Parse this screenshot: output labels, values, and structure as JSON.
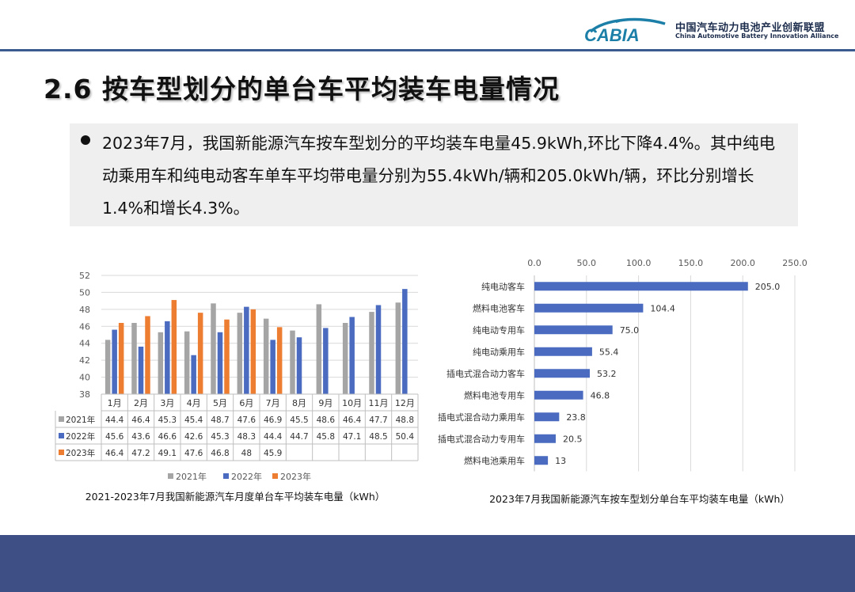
{
  "header": {
    "logo_text": "CABIA",
    "org_cn": "中国汽车动力电池产业创新联盟",
    "org_en": "China Automotive Battery Innovation Alliance",
    "accent_color": "#3b5a8f"
  },
  "slide_title": "2.6 按车型划分的单台车平均装车电量情况",
  "summary": "2023年7月，我国新能源汽车按车型划分的平均装车电量45.9kWh,环比下降4.4%。其中纯电动乘用车和纯电动客车单车平均带电量分别为55.4kWh/辆和205.0kWh/辆，环比分别增长1.4%和增长4.3%。",
  "chart_data": [
    {
      "type": "bar",
      "caption": "2021-2023年7月我国新能源汽车月度单台车平均装车电量（kWh）",
      "categories": [
        "1月",
        "2月",
        "3月",
        "4月",
        "5月",
        "6月",
        "7月",
        "8月",
        "9月",
        "10月",
        "11月",
        "12月"
      ],
      "ylim": [
        38,
        52
      ],
      "yticks": [
        38,
        40,
        42,
        44,
        46,
        48,
        50,
        52
      ],
      "grid": true,
      "legend_position": "bottom",
      "data_table": true,
      "series": [
        {
          "name": "2021年",
          "color": "#a5a5a5",
          "values": [
            44.4,
            46.4,
            45.3,
            45.4,
            48.7,
            47.6,
            46.9,
            45.5,
            48.6,
            46.4,
            47.7,
            48.8
          ]
        },
        {
          "name": "2022年",
          "color": "#4a6bbf",
          "values": [
            45.6,
            43.6,
            46.6,
            42.6,
            45.3,
            48.3,
            44.4,
            44.7,
            45.8,
            47.1,
            48.5,
            50.4
          ]
        },
        {
          "name": "2023年",
          "color": "#ed7d31",
          "values": [
            46.4,
            47.2,
            49.1,
            47.6,
            46.8,
            48,
            45.9,
            null,
            null,
            null,
            null,
            null
          ]
        }
      ],
      "table_cells": [
        [
          "44.4",
          "46.4",
          "45.3",
          "45.4",
          "48.7",
          "47.6",
          "46.9",
          "45.5",
          "48.6",
          "46.4",
          "47.7",
          "48.8"
        ],
        [
          "45.6",
          "43.6",
          "46.6",
          "42.6",
          "45.3",
          "48.3",
          "44.4",
          "44.7",
          "45.8",
          "47.1",
          "48.5",
          "50.4"
        ],
        [
          "46.4",
          "47.2",
          "49.1",
          "47.6",
          "46.8",
          "48",
          "45.9",
          "",
          "",
          "",
          "",
          ""
        ]
      ]
    },
    {
      "type": "bar",
      "orientation": "horizontal",
      "caption": "2023年7月我国新能源汽车按车型划分单台车平均装车电量（kWh）",
      "categories": [
        "纯电动客车",
        "燃料电池客车",
        "纯电动专用车",
        "纯电动乘用车",
        "插电式混合动力客车",
        "燃料电池专用车",
        "插电式混合动力乘用车",
        "插电式混合动力专用车",
        "燃料电池乘用车"
      ],
      "values": [
        205.0,
        104.4,
        75.0,
        55.4,
        53.2,
        46.8,
        23.8,
        20.5,
        13
      ],
      "value_labels": [
        "205.0",
        "104.4",
        "75.0",
        "55.4",
        "53.2",
        "46.8",
        "23.8",
        "20.5",
        "13"
      ],
      "xlim": [
        0,
        250
      ],
      "xticks": [
        "0.0",
        "50.0",
        "100.0",
        "150.0",
        "200.0",
        "250.0"
      ],
      "axis_position": "top",
      "grid": true,
      "color": "#4a6bbf"
    }
  ]
}
